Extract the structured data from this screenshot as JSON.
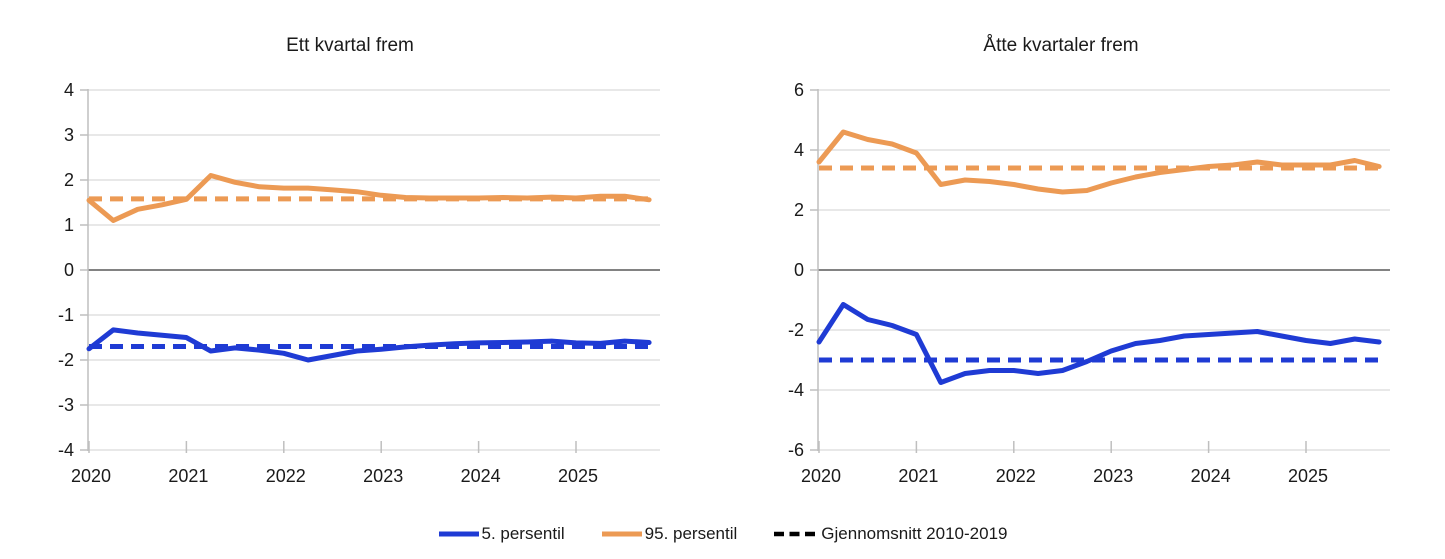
{
  "figure": {
    "legend": [
      {
        "label": "5. persentil",
        "color": "#1F3BD4",
        "style": "solid"
      },
      {
        "label": "95. persentil",
        "color": "#EC9A54",
        "style": "solid"
      },
      {
        "label": "Gjennomsnitt 2010-2019",
        "color": "#000000",
        "style": "dashed"
      }
    ],
    "colors": {
      "blue": "#1F3BD4",
      "orange": "#EC9A54",
      "gridline": "#D9D9D9",
      "zero_line": "#595959",
      "axis": "#BFBFBF",
      "text": "#1A1A1A"
    }
  },
  "chart_data": [
    {
      "type": "line",
      "title": "Ett kvartal frem",
      "x_start_year": 2020,
      "points_per_year": 4,
      "x_tick_labels": [
        "2020",
        "2021",
        "2022",
        "2023",
        "2024",
        "2025"
      ],
      "ylim": [
        -4,
        4
      ],
      "y_ticks": [
        4,
        3,
        2,
        1,
        0,
        -1,
        -2,
        -3,
        -4
      ],
      "grid": true,
      "legend_position": "bottom-shared",
      "series": [
        {
          "name": "Gjennomsnitt 2010-2019 (95. persentil)",
          "color": "#EC9A54",
          "dashed": true,
          "constant": 1.58
        },
        {
          "name": "Gjennomsnitt 2010-2019 (5. persentil)",
          "color": "#1F3BD4",
          "dashed": true,
          "constant": -1.7
        },
        {
          "name": "95. persentil",
          "color": "#EC9A54",
          "dashed": false,
          "values": [
            1.55,
            1.1,
            1.35,
            1.45,
            1.57,
            2.1,
            1.95,
            1.85,
            1.82,
            1.82,
            1.78,
            1.74,
            1.66,
            1.61,
            1.6,
            1.6,
            1.6,
            1.61,
            1.6,
            1.62,
            1.6,
            1.64,
            1.64,
            1.56
          ]
        },
        {
          "name": "5. persentil",
          "color": "#1F3BD4",
          "dashed": false,
          "values": [
            -1.75,
            -1.33,
            -1.4,
            -1.45,
            -1.5,
            -1.8,
            -1.73,
            -1.78,
            -1.85,
            -2.0,
            -1.9,
            -1.8,
            -1.76,
            -1.71,
            -1.67,
            -1.64,
            -1.62,
            -1.61,
            -1.6,
            -1.58,
            -1.62,
            -1.63,
            -1.58,
            -1.61
          ]
        }
      ]
    },
    {
      "type": "line",
      "title": "Åtte kvartaler frem",
      "x_start_year": 2020,
      "points_per_year": 4,
      "x_tick_labels": [
        "2020",
        "2021",
        "2022",
        "2023",
        "2024",
        "2025"
      ],
      "ylim": [
        -6,
        6
      ],
      "y_ticks": [
        6,
        4,
        2,
        0,
        -2,
        -4,
        -6
      ],
      "grid": true,
      "legend_position": "bottom-shared",
      "series": [
        {
          "name": "Gjennomsnitt 2010-2019 (95. persentil)",
          "color": "#EC9A54",
          "dashed": true,
          "constant": 3.4
        },
        {
          "name": "Gjennomsnitt 2010-2019 (5. persentil)",
          "color": "#1F3BD4",
          "dashed": true,
          "constant": -3.0
        },
        {
          "name": "95. persentil",
          "color": "#EC9A54",
          "dashed": false,
          "values": [
            3.6,
            4.6,
            4.35,
            4.2,
            3.9,
            2.85,
            3.0,
            2.95,
            2.85,
            2.7,
            2.6,
            2.65,
            2.9,
            3.1,
            3.25,
            3.35,
            3.45,
            3.5,
            3.6,
            3.5,
            3.5,
            3.5,
            3.65,
            3.45
          ]
        },
        {
          "name": "5. persentil",
          "color": "#1F3BD4",
          "dashed": false,
          "values": [
            -2.4,
            -1.15,
            -1.65,
            -1.85,
            -2.15,
            -3.75,
            -3.45,
            -3.35,
            -3.35,
            -3.45,
            -3.35,
            -3.05,
            -2.7,
            -2.45,
            -2.35,
            -2.2,
            -2.15,
            -2.1,
            -2.05,
            -2.2,
            -2.35,
            -2.45,
            -2.3,
            -2.4
          ]
        }
      ]
    }
  ]
}
